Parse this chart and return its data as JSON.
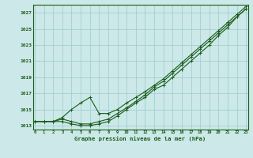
{
  "bg_color": "#cce8e8",
  "grid_color": "#99cccc",
  "line_color": "#1a5c1a",
  "xlabel": "Graphe pression niveau de la mer (hPa)",
  "ylim": [
    1012.5,
    1028.0
  ],
  "xlim": [
    -0.2,
    23.2
  ],
  "yticks": [
    1013,
    1015,
    1017,
    1019,
    1021,
    1023,
    1025,
    1027
  ],
  "xticks": [
    0,
    1,
    2,
    3,
    4,
    5,
    6,
    7,
    8,
    9,
    10,
    11,
    12,
    13,
    14,
    15,
    16,
    17,
    18,
    19,
    20,
    21,
    22,
    23
  ],
  "series1": [
    1013.5,
    1013.5,
    1013.5,
    1013.5,
    1013.2,
    1013.0,
    1013.0,
    1013.2,
    1013.5,
    1014.2,
    1015.0,
    1015.8,
    1016.5,
    1017.5,
    1018.0,
    1019.0,
    1020.0,
    1021.0,
    1022.0,
    1023.0,
    1024.2,
    1025.2,
    1026.5,
    1027.5
  ],
  "series2": [
    1013.5,
    1013.5,
    1013.5,
    1014.0,
    1015.0,
    1015.8,
    1016.5,
    1014.5,
    1014.5,
    1015.0,
    1015.8,
    1016.5,
    1017.2,
    1018.0,
    1018.8,
    1019.8,
    1020.8,
    1021.8,
    1022.8,
    1023.8,
    1024.8,
    1025.8,
    1026.8,
    1027.8
  ],
  "series3": [
    1013.5,
    1013.5,
    1013.5,
    1013.8,
    1013.5,
    1013.2,
    1013.2,
    1013.5,
    1013.8,
    1014.5,
    1015.2,
    1016.0,
    1016.8,
    1017.8,
    1018.5,
    1019.5,
    1020.5,
    1021.5,
    1022.5,
    1023.5,
    1024.5,
    1025.5,
    1026.5,
    1027.5
  ]
}
